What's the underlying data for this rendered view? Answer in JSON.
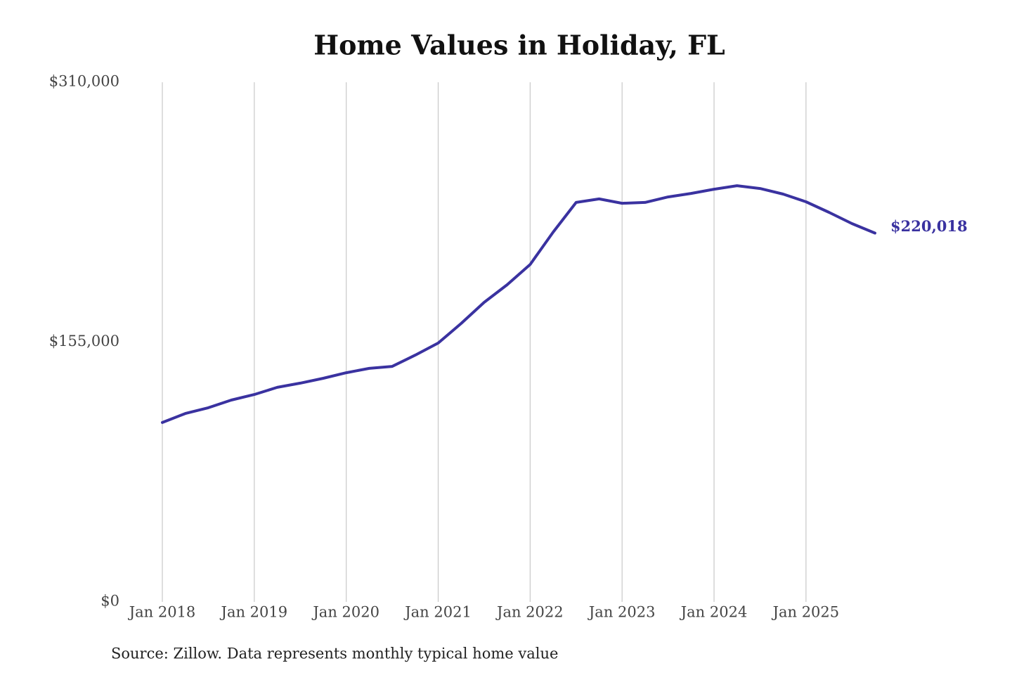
{
  "chart_data": {
    "type": "line",
    "title": "Home Values in Holiday, FL",
    "source": "Source: Zillow. Data represents monthly typical home value",
    "x": [
      "2018-01",
      "2018-04",
      "2018-07",
      "2018-10",
      "2019-01",
      "2019-04",
      "2019-07",
      "2019-10",
      "2020-01",
      "2020-04",
      "2020-07",
      "2020-10",
      "2021-01",
      "2021-04",
      "2021-07",
      "2021-10",
      "2022-01",
      "2022-04",
      "2022-07",
      "2022-10",
      "2023-01",
      "2023-04",
      "2023-07",
      "2023-10",
      "2024-01",
      "2024-04",
      "2024-07",
      "2024-10",
      "2025-01",
      "2025-04",
      "2025-07",
      "2025-10"
    ],
    "series": [
      {
        "name": "Typical home value",
        "color": "#3a32a0",
        "values": [
          107000,
          112400,
          115800,
          120400,
          123700,
          128000,
          130500,
          133400,
          136700,
          139300,
          140500,
          147200,
          154400,
          166100,
          178700,
          189200,
          201300,
          220600,
          238300,
          240400,
          237800,
          238300,
          241600,
          243700,
          246200,
          248300,
          246600,
          243300,
          238700,
          232400,
          225700,
          220018
        ],
        "value_labels": [
          null,
          null,
          null,
          null,
          null,
          null,
          null,
          null,
          null,
          null,
          null,
          null,
          null,
          null,
          null,
          null,
          null,
          null,
          null,
          null,
          null,
          null,
          null,
          null,
          null,
          null,
          null,
          null,
          null,
          null,
          null,
          "$220,018"
        ]
      }
    ],
    "xlim": [
      "2018-01",
      "2025-10"
    ],
    "xticks": [
      {
        "value": "2018-01",
        "label": "Jan 2018"
      },
      {
        "value": "2019-01",
        "label": "Jan 2019"
      },
      {
        "value": "2020-01",
        "label": "Jan 2020"
      },
      {
        "value": "2021-01",
        "label": "Jan 2021"
      },
      {
        "value": "2022-01",
        "label": "Jan 2022"
      },
      {
        "value": "2023-01",
        "label": "Jan 2023"
      },
      {
        "value": "2024-01",
        "label": "Jan 2024"
      },
      {
        "value": "2025-01",
        "label": "Jan 2025"
      }
    ],
    "ylim": [
      0,
      310000
    ],
    "yticks": [
      {
        "value": 0,
        "label": "$0"
      },
      {
        "value": 155000,
        "label": "$155,000"
      },
      {
        "value": 310000,
        "label": "$310,000"
      }
    ],
    "grid": "x"
  }
}
